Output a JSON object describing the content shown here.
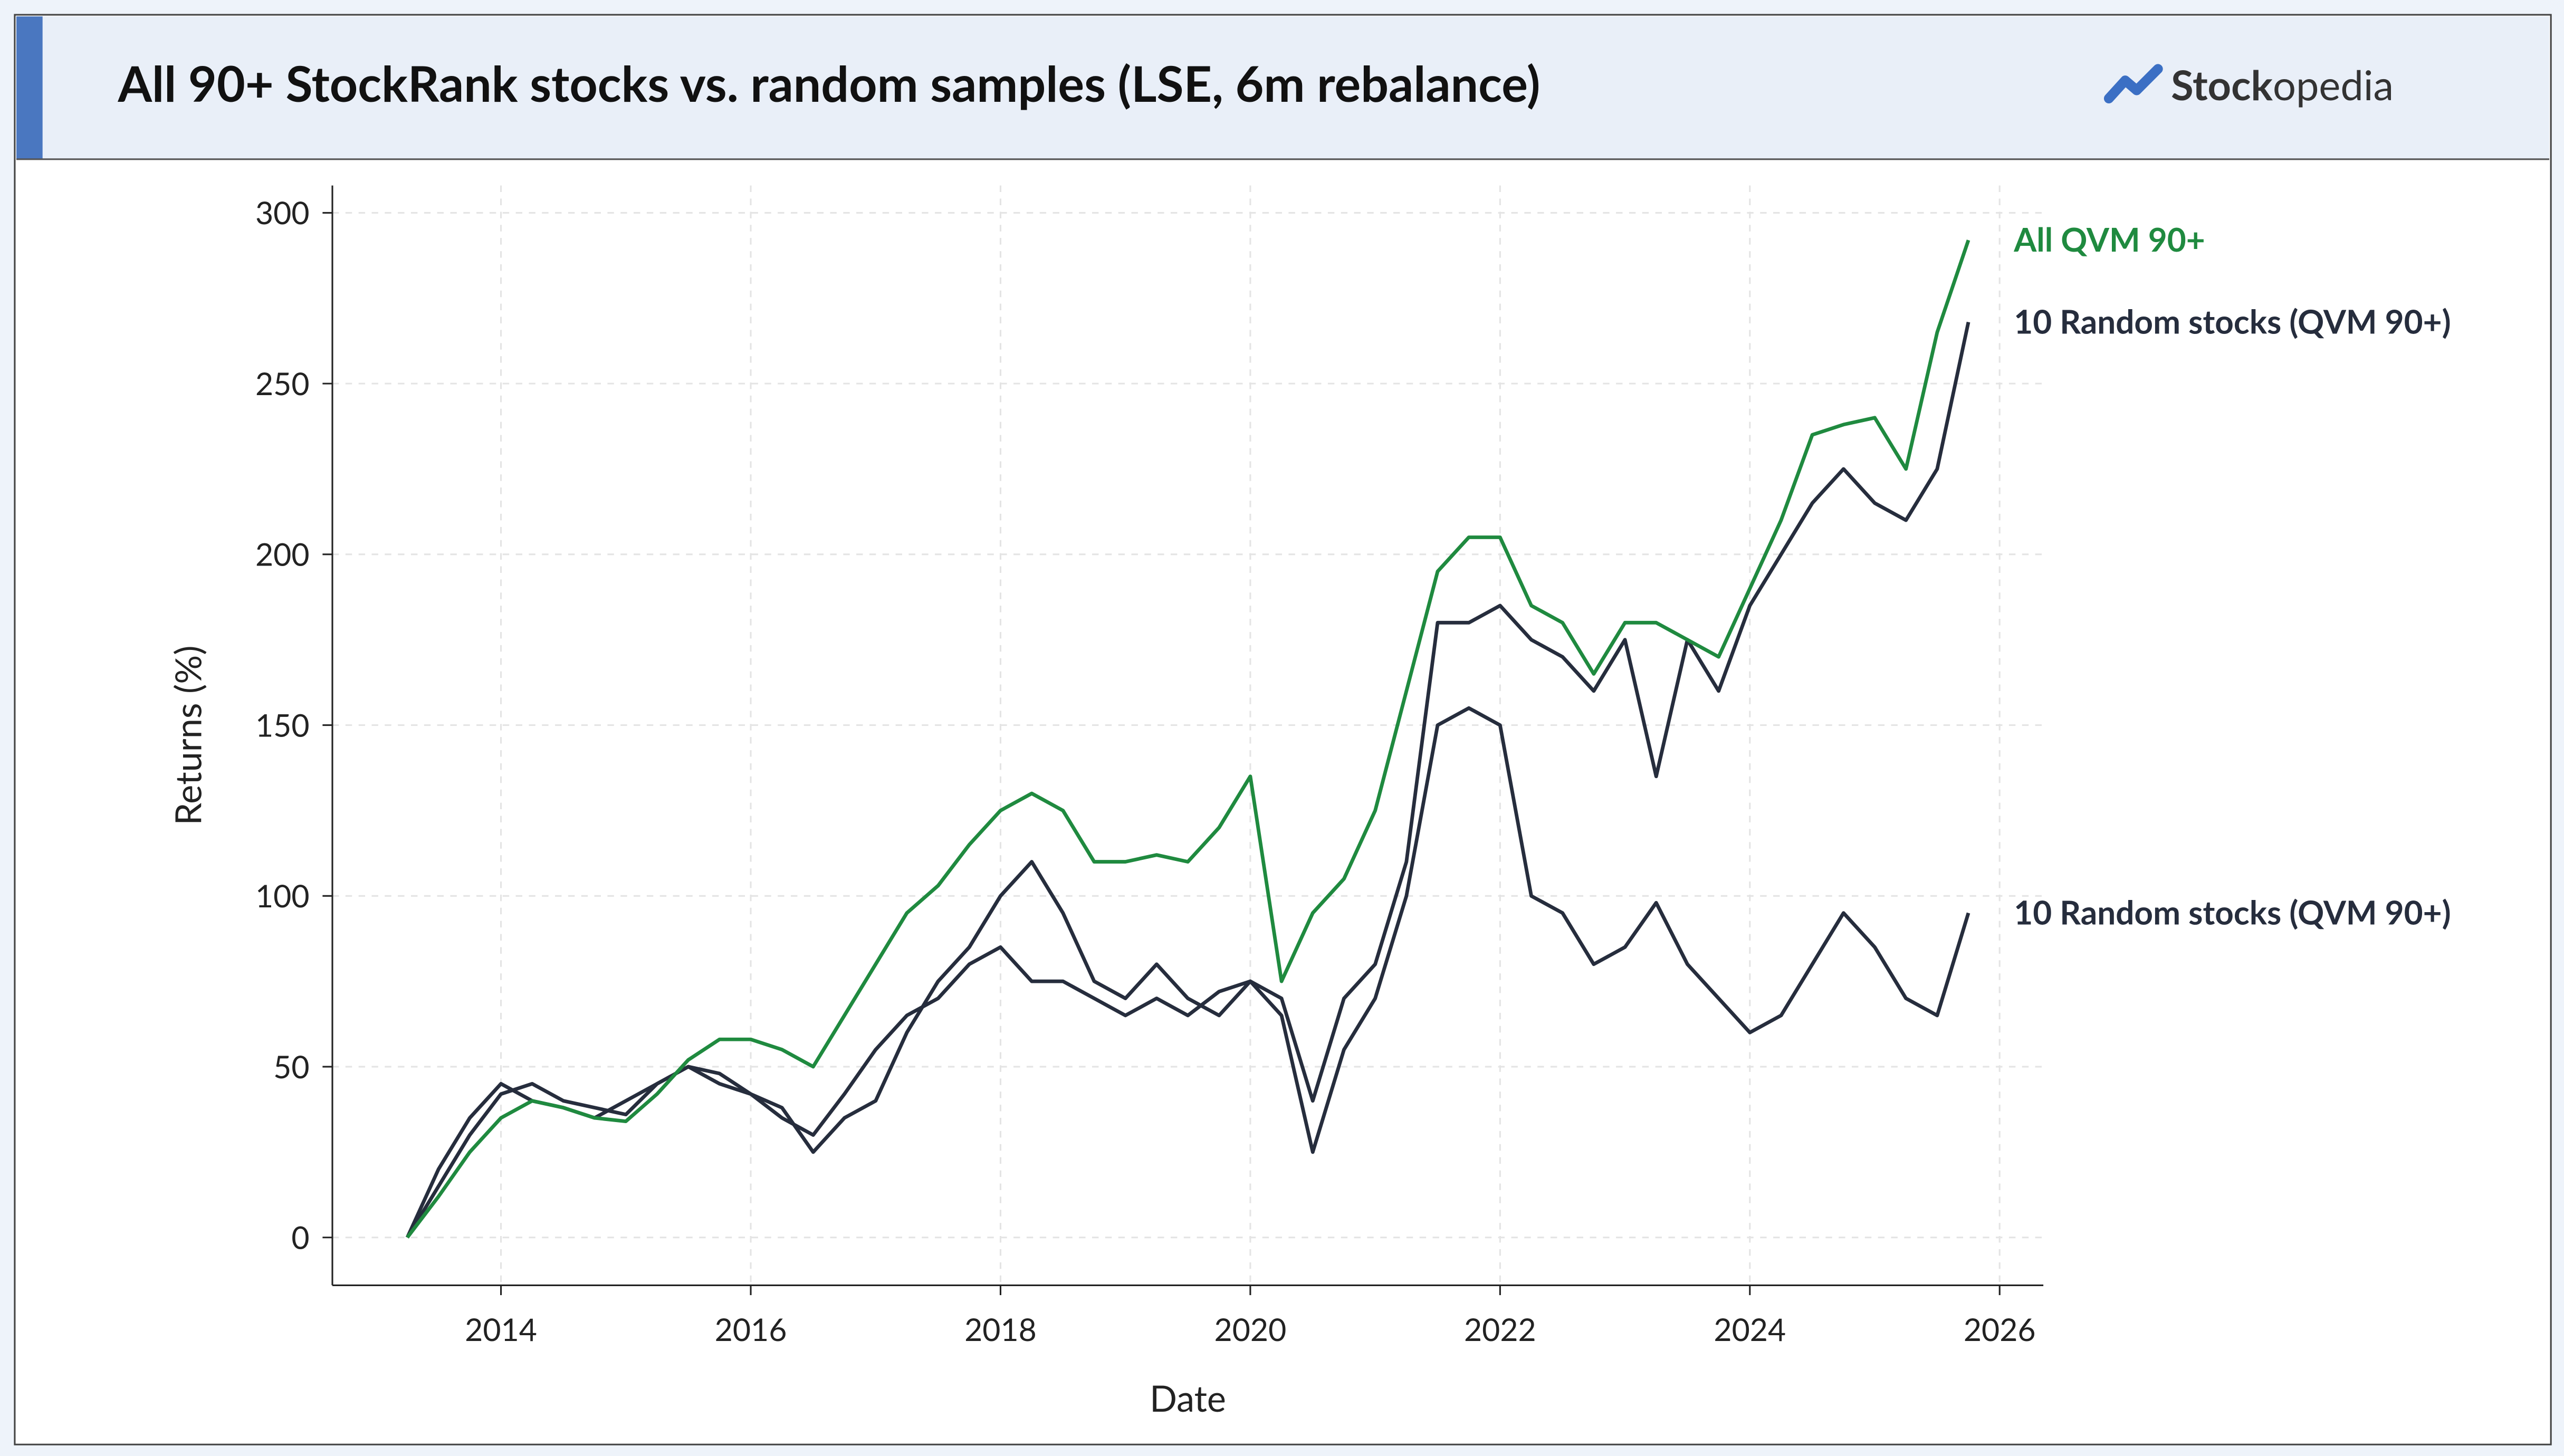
{
  "header": {
    "title": "All 90+ StockRank stocks vs. random samples (LSE, 6m rebalance)",
    "brand": {
      "bold": "Stock",
      "light": "opedia"
    }
  },
  "chart_data": {
    "type": "line",
    "xlabel": "Date",
    "ylabel": "Returns (%)",
    "xlim": [
      2012.65,
      2026.35
    ],
    "ylim": [
      -14,
      308
    ],
    "xticks": [
      2014,
      2016,
      2018,
      2020,
      2022,
      2024,
      2026
    ],
    "yticks": [
      0,
      50,
      100,
      150,
      200,
      250,
      300
    ],
    "grid": true,
    "x": [
      2013.25,
      2013.5,
      2013.75,
      2014,
      2014.25,
      2014.5,
      2014.75,
      2015,
      2015.25,
      2015.5,
      2015.75,
      2016,
      2016.25,
      2016.5,
      2016.75,
      2017,
      2017.25,
      2017.5,
      2017.75,
      2018,
      2018.25,
      2018.5,
      2018.75,
      2019,
      2019.25,
      2019.5,
      2019.75,
      2020,
      2020.25,
      2020.5,
      2020.75,
      2021,
      2021.25,
      2021.5,
      2021.75,
      2022,
      2022.25,
      2022.5,
      2022.75,
      2023,
      2023.25,
      2023.5,
      2023.75,
      2024,
      2024.25,
      2024.5,
      2024.75,
      2025,
      2025.25,
      2025.5,
      2025.75
    ],
    "series": [
      {
        "name": "All QVM 90+",
        "color": "#1f8a3f",
        "values": [
          0,
          12,
          25,
          35,
          40,
          38,
          35,
          34,
          42,
          52,
          58,
          58,
          55,
          50,
          65,
          80,
          95,
          103,
          115,
          125,
          130,
          125,
          110,
          110,
          112,
          110,
          120,
          135,
          75,
          95,
          105,
          125,
          160,
          195,
          205,
          205,
          185,
          180,
          165,
          180,
          180,
          175,
          170,
          190,
          210,
          235,
          238,
          240,
          225,
          265,
          292
        ]
      },
      {
        "name": "10 Random stocks (QVM 90+)",
        "color": "#262d3d",
        "values": [
          0,
          15,
          30,
          42,
          45,
          40,
          38,
          36,
          45,
          50,
          48,
          42,
          38,
          25,
          35,
          40,
          60,
          75,
          85,
          100,
          110,
          95,
          75,
          70,
          80,
          70,
          65,
          75,
          70,
          40,
          70,
          80,
          110,
          180,
          180,
          185,
          175,
          170,
          160,
          175,
          135,
          175,
          160,
          185,
          200,
          215,
          225,
          215,
          210,
          225,
          268
        ]
      },
      {
        "name": "10 Random stocks (QVM 90+)",
        "color": "#262d3d",
        "values": [
          0,
          20,
          35,
          45,
          40,
          38,
          35,
          40,
          45,
          50,
          45,
          42,
          35,
          30,
          42,
          55,
          65,
          70,
          80,
          85,
          75,
          75,
          70,
          65,
          70,
          65,
          72,
          75,
          65,
          25,
          55,
          70,
          100,
          150,
          155,
          150,
          100,
          95,
          80,
          85,
          98,
          80,
          70,
          60,
          65,
          80,
          95,
          85,
          70,
          65,
          95
        ]
      }
    ]
  }
}
